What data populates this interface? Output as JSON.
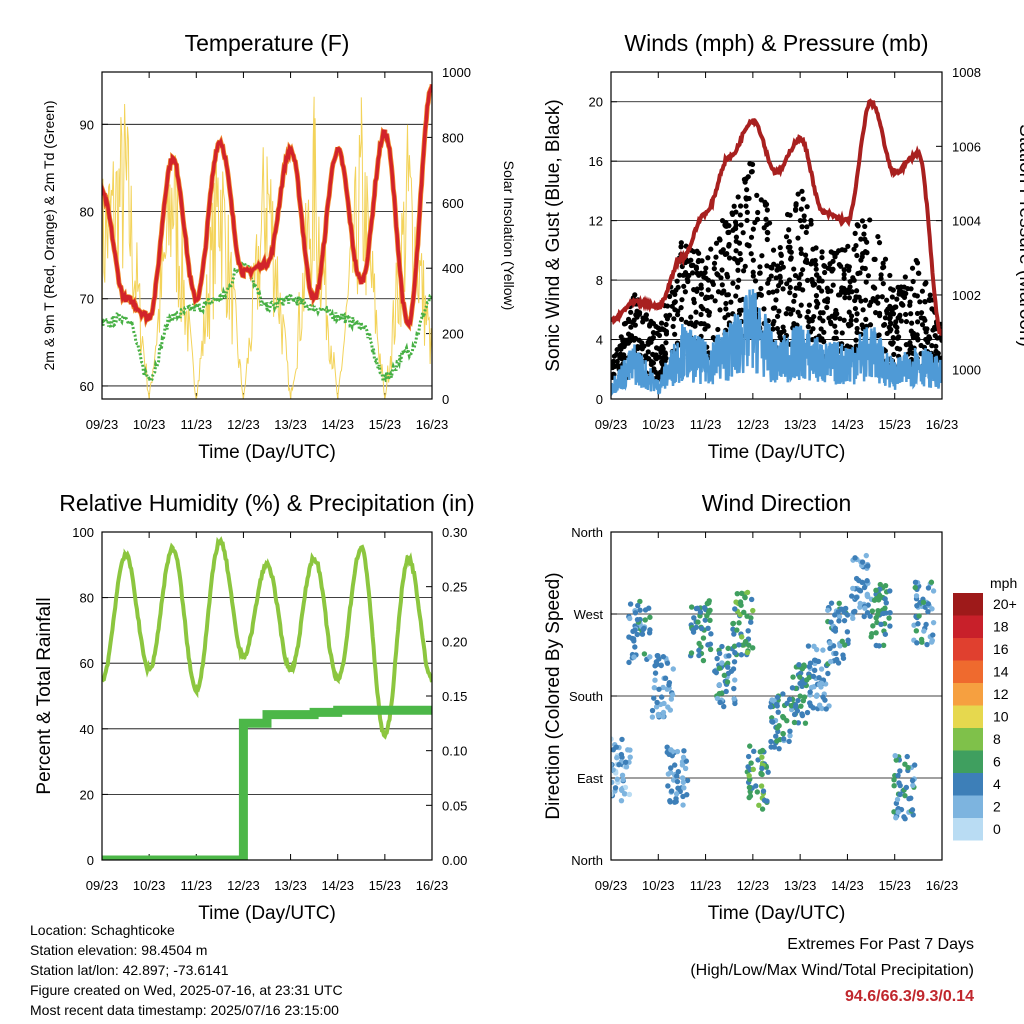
{
  "colors": {
    "temp_red": "#d2232a",
    "temp_orange": "#f08a2a",
    "dewpoint_green": "#47b044",
    "solar_yellow": "#f3d35a",
    "pressure_maroon": "#a8201f",
    "wind_blue": "#4f9ad6",
    "gust_black": "#000000",
    "rh_lightgreen": "#8cc63f",
    "precip_green": "#4cb748",
    "extremes_red": "#c0272d"
  },
  "x_ticks": [
    "09/23",
    "10/23",
    "11/23",
    "12/23",
    "13/23",
    "14/23",
    "15/23",
    "16/23"
  ],
  "panels": {
    "temperature": {
      "title": "Temperature (F)",
      "xlabel": "Time (Day/UTC)",
      "ylabel_left": "2m & 9m T (Red, Orange) & 2m Td (Green)",
      "ylabel_right": "Solar Insolation (Yellow)",
      "left_ticks": [
        "60",
        "70",
        "80",
        "90"
      ],
      "right_ticks": [
        "0",
        "200",
        "400",
        "600",
        "800",
        "1000"
      ]
    },
    "winds": {
      "title": "Winds (mph) & Pressure (mb)",
      "xlabel": "Time (Day/UTC)",
      "ylabel_left": "Sonic Wind & Gust (Blue, Black)",
      "ylabel_right": "Station Pressure (Maroon)",
      "left_ticks": [
        "0",
        "4",
        "8",
        "12",
        "16",
        "20"
      ],
      "right_ticks": [
        "1000",
        "1002",
        "1004",
        "1006",
        "1008"
      ]
    },
    "humidity": {
      "title": "Relative Humidity (%) & Precipitation (in)",
      "xlabel": "Time (Day/UTC)",
      "ylabel_left": "Percent & Total Rainfall",
      "left_ticks": [
        "0",
        "20",
        "40",
        "60",
        "80",
        "100"
      ],
      "right_ticks": [
        "0.00",
        "0.05",
        "0.10",
        "0.15",
        "0.20",
        "0.25",
        "0.30"
      ]
    },
    "direction": {
      "title": "Wind Direction",
      "xlabel": "Time (Day/UTC)",
      "ylabel_left": "Direction (Colored By Speed)",
      "left_ticks": [
        "North",
        "East",
        "South",
        "West",
        "North"
      ],
      "legend_title": "mph",
      "legend_labels": [
        "20+",
        "18",
        "16",
        "14",
        "12",
        "10",
        "8",
        "6",
        "4",
        "2",
        "0"
      ],
      "legend_colors": [
        "#9e1a1a",
        "#c8202a",
        "#e0402f",
        "#ef6a2e",
        "#f6a040",
        "#e6d84e",
        "#7fc14a",
        "#3f9f5f",
        "#3d7fb8",
        "#7db4df",
        "#b9dcf3"
      ]
    }
  },
  "info": {
    "location": "Location: Schaghticoke",
    "elevation": "Station elevation: 98.4504 m",
    "latlon": "Station lat/lon: 42.897; -73.6141",
    "created": "Figure created on Wed, 2025-07-16, at 23:31 UTC",
    "recent": "Most recent data timestamp: 2025/07/16 23:15:00"
  },
  "extremes": {
    "heading": "Extremes For Past 7 Days",
    "subheading": "(High/Low/Max Wind/Total Precipitation)",
    "values": "94.6/66.3/9.3/0.14"
  },
  "chart_data": [
    {
      "type": "line",
      "title": "Temperature (F)",
      "xlabel": "Time (Day/UTC)",
      "x": [
        9,
        9.5,
        10,
        10.5,
        11,
        11.5,
        12,
        12.5,
        13,
        13.5,
        14,
        14.5,
        15,
        15.5,
        16
      ],
      "ylim_left": [
        58.5,
        96
      ],
      "ylim_right": [
        0,
        1000
      ],
      "series": [
        {
          "name": "2m & 9m T (Red, Orange)",
          "values": [
            82,
            70,
            68,
            86,
            70,
            88,
            73,
            74,
            87,
            70,
            87,
            72,
            89,
            67,
            94.6
          ]
        },
        {
          "name": "2m Td (Green)",
          "values": [
            67,
            68,
            61,
            68,
            69,
            70,
            74,
            69,
            70,
            69,
            68,
            67,
            61,
            64,
            70
          ]
        },
        {
          "name": "Solar Insolation (Yellow)",
          "values": [
            700,
            960,
            0,
            920,
            0,
            930,
            0,
            950,
            0,
            940,
            0,
            950,
            0,
            900,
            200
          ]
        }
      ]
    },
    {
      "type": "scatter",
      "title": "Winds (mph) & Pressure (mb)",
      "xlabel": "Time (Day/UTC)",
      "x": [
        9,
        9.5,
        10,
        10.5,
        11,
        11.5,
        12,
        12.5,
        13,
        13.5,
        14,
        14.5,
        15,
        15.5,
        16
      ],
      "ylim_left": [
        0,
        22
      ],
      "ylim_right": [
        999.2,
        1008
      ],
      "series": [
        {
          "name": "Sonic Wind (Blue)",
          "values": [
            1,
            3,
            1,
            4,
            3,
            4,
            6,
            3,
            4,
            3,
            3,
            4,
            2,
            3,
            2
          ]
        },
        {
          "name": "Gust (Black)",
          "values": [
            2,
            6,
            4,
            9,
            8,
            11,
            14,
            9,
            12,
            8,
            9,
            11,
            6,
            8,
            4
          ]
        },
        {
          "name": "Station Pressure (Maroon)",
          "values": [
            1001.3,
            1001.8,
            1001.7,
            1003.0,
            1004.2,
            1005.7,
            1006.7,
            1005.3,
            1006.2,
            1004.2,
            1004.0,
            1007.2,
            1005.3,
            1005.8,
            1000.9
          ]
        }
      ]
    },
    {
      "type": "line",
      "title": "Relative Humidity (%) & Precipitation (in)",
      "xlabel": "Time (Day/UTC)",
      "x": [
        9,
        9.5,
        10,
        10.5,
        11,
        11.5,
        12,
        12.5,
        13,
        13.5,
        14,
        14.5,
        15,
        15.5,
        16
      ],
      "ylim_left": [
        0,
        100
      ],
      "ylim_right": [
        0,
        0.3
      ],
      "series": [
        {
          "name": "Relative Humidity",
          "values": [
            55,
            93,
            58,
            95,
            52,
            97,
            62,
            90,
            58,
            92,
            55,
            95,
            38,
            92,
            55
          ]
        },
        {
          "name": "Total Rainfall",
          "values": [
            0,
            0,
            0,
            0,
            0,
            0,
            0.125,
            0.133,
            0.133,
            0.135,
            0.137,
            0.137,
            0.137,
            0.137,
            0.137
          ]
        }
      ]
    },
    {
      "type": "scatter",
      "title": "Wind Direction",
      "xlabel": "Time (Day/UTC)",
      "ylabel": "Direction (Colored By Speed)",
      "y_categories": [
        "North",
        "East",
        "South",
        "West",
        "North"
      ],
      "x": [
        9.2,
        9.6,
        10.1,
        10.4,
        10.9,
        11.4,
        11.8,
        12.1,
        12.6,
        13.0,
        13.4,
        13.8,
        14.3,
        14.7,
        15.2,
        15.6
      ],
      "direction_deg": [
        100,
        250,
        190,
        90,
        250,
        200,
        260,
        90,
        150,
        180,
        200,
        250,
        300,
        270,
        80,
        270
      ],
      "speed_mph": [
        2,
        4,
        3,
        3,
        5,
        4,
        6,
        6,
        4,
        5,
        3,
        4,
        3,
        5,
        4,
        4
      ]
    }
  ]
}
